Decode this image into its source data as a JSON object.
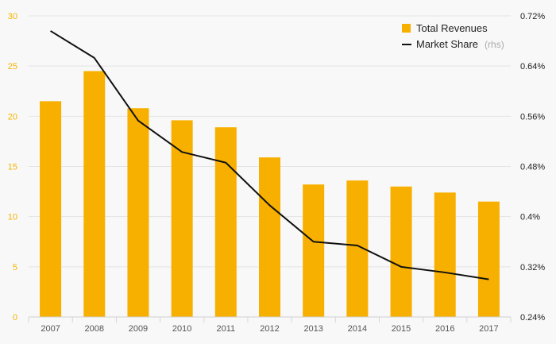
{
  "chart_data": {
    "type": "bar",
    "categories": [
      "2007",
      "2008",
      "2009",
      "2010",
      "2011",
      "2012",
      "2013",
      "2014",
      "2015",
      "2016",
      "2017"
    ],
    "series": [
      {
        "name": "Total Revenues",
        "axis": "left",
        "type": "bar",
        "color": "#f8b000",
        "values": [
          21.5,
          24.5,
          20.8,
          19.6,
          18.9,
          15.9,
          13.2,
          13.6,
          13.0,
          12.4,
          11.5
        ]
      },
      {
        "name": "Market Share",
        "axis": "right",
        "type": "line",
        "color": "#111111",
        "values": [
          0.696,
          0.653,
          0.553,
          0.503,
          0.486,
          0.418,
          0.36,
          0.354,
          0.32,
          0.311,
          0.3
        ]
      }
    ],
    "legend": {
      "position": "top-right",
      "bar_label": "Total Revenues",
      "line_label": "Market Share",
      "line_suffix": "(rhs)"
    },
    "y_left": {
      "min": 0,
      "max": 30,
      "ticks": [
        "0",
        "5",
        "10",
        "15",
        "20",
        "25",
        "30"
      ]
    },
    "y_right": {
      "min": 0.24,
      "max": 0.72,
      "ticks": [
        "0.24%",
        "0.32%",
        "0.4%",
        "0.48%",
        "0.56%",
        "0.64%",
        "0.72%"
      ]
    },
    "grid": true
  }
}
